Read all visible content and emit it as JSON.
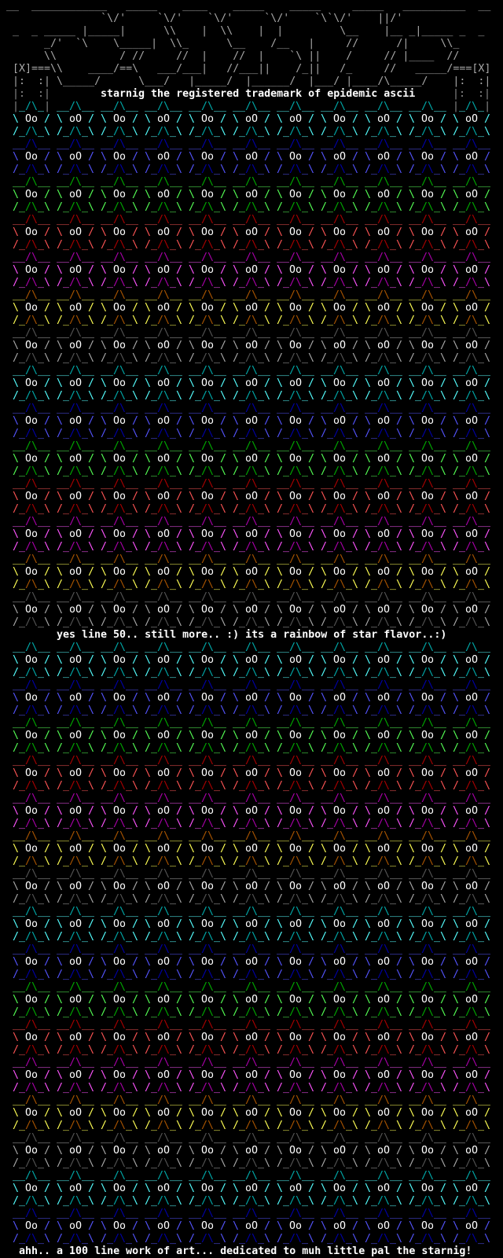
{
  "header": {
    "logo_lines": [
      " __  ____________   _____    ____    _____    _____     _____   __________  __",
      "                `\\/'     `\\/'    `\\/'     `\\/'    `\\`\\/'    ||/'",
      "  _  _ _____ |_____|      \\\\    |  \\\\    |  |         \\__    |__ _|_____ _  _",
      "       _/'  `\\    \\_____|  \\\\_      \\__    /__   |     //      /|     \\\\_",
      "       \\\\          / //     //  |    //  |    `\\ ||    /     // |____  //",
      "  [X]===\\\\    ____/==\\   ___/___|   //___||    /_||   /_     //   _____/===[X]",
      "  |:  :| \\_____/      \\___/   |_____/  |______/  |___/ |____/\\_____/    |:  :|"
    ],
    "frame_left": "|:  :|",
    "frame_right": "|:  :|",
    "tagline": "starnig the registered trademark of epidemic ascii"
  },
  "middle_text": "yes line 50.. still more.. :) its a rainbow of star flavor..:)",
  "footer_text": "ahh.. a 100 line work of art... dedicated to muh little pal the starnig!",
  "star": {
    "top_left": "__",
    "peak": "/\\",
    "top_right": "__",
    "mid_left": "\\",
    "mid_right": "/",
    "bottom_left": "/_",
    "valley": "/\\",
    "bottom_right": "_\\",
    "frame_bar": "|",
    "frame_fill": "_"
  },
  "palette": {
    "cyan": {
      "light": "#55ffff",
      "dark": "#00aaaa"
    },
    "blue": {
      "light": "#5555ff",
      "dark": "#0000aa"
    },
    "green": {
      "light": "#55ff55",
      "dark": "#00aa00"
    },
    "red": {
      "light": "#ff5555",
      "dark": "#aa0000"
    },
    "magenta": {
      "light": "#ff55ff",
      "dark": "#aa00aa"
    },
    "yellow": {
      "light": "#ffff55",
      "dark": "#aa5500"
    },
    "gray": {
      "light": "#aaaaaa",
      "dark": "#555555"
    }
  },
  "sections": [
    {
      "bands": [
        {
          "color": "cyan",
          "faces": [
            "Oo",
            "oO",
            "Oo",
            "oO",
            "Oo",
            "oO",
            "oO",
            "Oo",
            "oO",
            "Oo",
            "oO"
          ]
        },
        {
          "color": "blue",
          "faces": [
            "Oo",
            "oO",
            "Oo",
            "oO",
            "Oo",
            "oO",
            "Oo",
            "oO",
            "oO",
            "Oo",
            "oO"
          ]
        },
        {
          "color": "green",
          "faces": [
            "Oo",
            "oO",
            "Oo",
            "oO",
            "Oo",
            "oO",
            "Oo",
            "Oo",
            "oO",
            "Oo",
            "oO"
          ]
        },
        {
          "color": "red",
          "faces": [
            "Oo",
            "oO",
            "Oo",
            "oO",
            "Oo",
            "oO",
            "Oo",
            "Oo",
            "oO",
            "Oo",
            "oO"
          ]
        },
        {
          "color": "magenta",
          "faces": [
            "Oo",
            "oO",
            "Oo",
            "oO",
            "Oo",
            "oO",
            "Oo",
            "Oo",
            "oO",
            "Oo",
            "oO"
          ]
        },
        {
          "color": "yellow",
          "faces": [
            "Oo",
            "oO",
            "Oo",
            "oO",
            "Oo",
            "oO",
            "Oo",
            "Oo",
            "oO",
            "Oo",
            "oO"
          ]
        },
        {
          "color": "gray",
          "faces": [
            "Oo",
            "oO",
            "Oo",
            "oO",
            "Oo",
            "oO",
            "Oo",
            "oO",
            "oO",
            "Oo",
            "oO"
          ]
        },
        {
          "color": "cyan",
          "faces": [
            "Oo",
            "oO",
            "Oo",
            "oO",
            "Oo",
            "oO",
            "oO",
            "Oo",
            "oO",
            "Oo",
            "oO"
          ]
        },
        {
          "color": "blue",
          "faces": [
            "Oo",
            "oO",
            "Oo",
            "oO",
            "Oo",
            "oO",
            "Oo",
            "oO",
            "oO",
            "Oo",
            "oO"
          ]
        },
        {
          "color": "green",
          "faces": [
            "Oo",
            "oO",
            "Oo",
            "oO",
            "Oo",
            "oO",
            "Oo",
            "Oo",
            "oO",
            "Oo",
            "oO"
          ]
        },
        {
          "color": "red",
          "faces": [
            "Oo",
            "oO",
            "Oo",
            "oO",
            "Oo",
            "oO",
            "Oo",
            "Oo",
            "oO",
            "Oo",
            "oO"
          ]
        },
        {
          "color": "magenta",
          "faces": [
            "Oo",
            "oO",
            "Oo",
            "oO",
            "Oo",
            "oO",
            "Oo",
            "Oo",
            "oO",
            "Oo",
            "oO"
          ]
        },
        {
          "color": "yellow",
          "faces": [
            "Oo",
            "oO",
            "Oo",
            "oO",
            "Oo",
            "oO",
            "Oo",
            "Oo",
            "oO",
            "Oo",
            "oO"
          ]
        },
        {
          "color": "gray",
          "faces": [
            "Oo",
            "oO",
            "Oo",
            "oO",
            "Oo",
            "oO",
            "Oo",
            "oO",
            "oO",
            "Oo",
            "oO"
          ]
        }
      ]
    },
    {
      "bands": [
        {
          "color": "cyan",
          "faces": [
            "Oo",
            "oO",
            "Oo",
            "oO",
            "Oo",
            "oO",
            "oO",
            "Oo",
            "oO",
            "Oo",
            "oO"
          ]
        },
        {
          "color": "blue",
          "faces": [
            "Oo",
            "oO",
            "Oo",
            "oO",
            "Oo",
            "oO",
            "Oo",
            "oO",
            "oO",
            "Oo",
            "oO"
          ]
        },
        {
          "color": "green",
          "faces": [
            "Oo",
            "oO",
            "Oo",
            "oO",
            "Oo",
            "oO",
            "Oo",
            "Oo",
            "oO",
            "Oo",
            "oO"
          ]
        },
        {
          "color": "red",
          "faces": [
            "Oo",
            "oO",
            "Oo",
            "oO",
            "Oo",
            "oO",
            "Oo",
            "Oo",
            "oO",
            "Oo",
            "oO"
          ]
        },
        {
          "color": "magenta",
          "faces": [
            "Oo",
            "oO",
            "Oo",
            "oO",
            "Oo",
            "oO",
            "Oo",
            "Oo",
            "oO",
            "Oo",
            "oO"
          ]
        },
        {
          "color": "yellow",
          "faces": [
            "Oo",
            "oO",
            "Oo",
            "oO",
            "Oo",
            "oO",
            "Oo",
            "Oo",
            "oO",
            "Oo",
            "oO"
          ]
        },
        {
          "color": "gray",
          "faces": [
            "Oo",
            "oO",
            "Oo",
            "oO",
            "Oo",
            "oO",
            "Oo",
            "oO",
            "oO",
            "Oo",
            "oO"
          ]
        },
        {
          "color": "cyan",
          "faces": [
            "Oo",
            "oO",
            "Oo",
            "oO",
            "Oo",
            "oO",
            "oO",
            "Oo",
            "oO",
            "Oo",
            "oO"
          ]
        },
        {
          "color": "blue",
          "faces": [
            "Oo",
            "oO",
            "Oo",
            "oO",
            "Oo",
            "oO",
            "Oo",
            "oO",
            "oO",
            "Oo",
            "oO"
          ]
        },
        {
          "color": "green",
          "faces": [
            "Oo",
            "oO",
            "Oo",
            "oO",
            "Oo",
            "oO",
            "Oo",
            "Oo",
            "oO",
            "Oo",
            "oO"
          ]
        },
        {
          "color": "red",
          "faces": [
            "Oo",
            "oO",
            "Oo",
            "oO",
            "Oo",
            "oO",
            "Oo",
            "Oo",
            "oO",
            "Oo",
            "oO"
          ]
        },
        {
          "color": "magenta",
          "faces": [
            "Oo",
            "oO",
            "Oo",
            "oO",
            "Oo",
            "oO",
            "Oo",
            "Oo",
            "oO",
            "Oo",
            "oO"
          ]
        },
        {
          "color": "yellow",
          "faces": [
            "Oo",
            "oO",
            "Oo",
            "oO",
            "Oo",
            "oO",
            "Oo",
            "Oo",
            "oO",
            "Oo",
            "oO"
          ]
        },
        {
          "color": "gray",
          "faces": [
            "Oo",
            "oO",
            "Oo",
            "oO",
            "Oo",
            "oO",
            "Oo",
            "oO",
            "oO",
            "Oo",
            "oO"
          ]
        },
        {
          "color": "cyan",
          "faces": [
            "Oo",
            "oO",
            "Oo",
            "oO",
            "Oo",
            "oO",
            "oO",
            "Oo",
            "oO",
            "Oo",
            "oO"
          ]
        },
        {
          "color": "blue",
          "faces": [
            "Oo",
            "oO",
            "Oo",
            "oO",
            "Oo",
            "oO",
            "Oo",
            "oO",
            "oO",
            "Oo",
            "oO"
          ]
        }
      ]
    }
  ]
}
